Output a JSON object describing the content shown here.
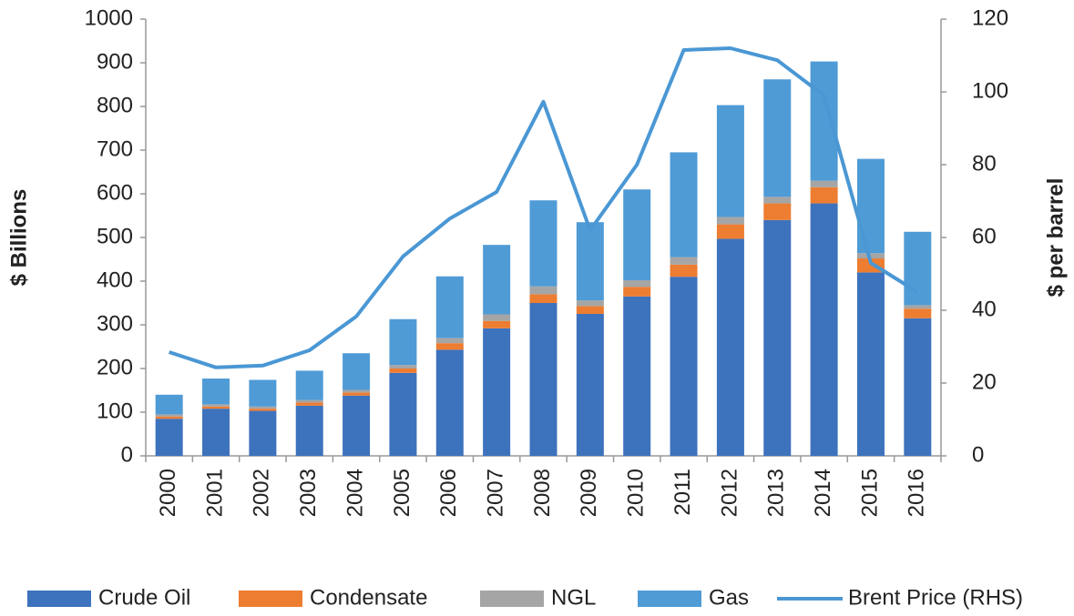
{
  "chart_data": {
    "type": "bar",
    "stacked": true,
    "categories": [
      "2000",
      "2001",
      "2002",
      "2003",
      "2004",
      "2005",
      "2006",
      "2007",
      "2008",
      "2009",
      "2010",
      "2011",
      "2012",
      "2013",
      "2014",
      "2015",
      "2016"
    ],
    "series": [
      {
        "name": "Crude Oil",
        "color": "#3d72bd",
        "values": [
          85,
          108,
          103,
          115,
          138,
          190,
          243,
          292,
          350,
          325,
          365,
          410,
          497,
          540,
          578,
          420,
          315
        ]
      },
      {
        "name": "Condensate",
        "color": "#ed7d31",
        "values": [
          5,
          5,
          5,
          7,
          7,
          10,
          15,
          17,
          20,
          18,
          22,
          28,
          33,
          38,
          37,
          32,
          22
        ]
      },
      {
        "name": "NGL",
        "color": "#a5a5a5",
        "values": [
          5,
          5,
          5,
          6,
          6,
          8,
          12,
          15,
          18,
          13,
          15,
          17,
          17,
          15,
          15,
          12,
          8
        ]
      },
      {
        "name": "Gas",
        "color": "#4f9bd6",
        "values": [
          45,
          59,
          61,
          67,
          84,
          105,
          141,
          159,
          197,
          179,
          208,
          240,
          256,
          269,
          273,
          216,
          168
        ]
      },
      {
        "name": "Brent Price (RHS)",
        "color": "#4a97d4",
        "type": "line",
        "axis": "y2",
        "values": [
          28.5,
          24.3,
          24.8,
          29,
          38.3,
          54.8,
          65.2,
          72.5,
          97.3,
          62,
          80,
          111.5,
          112,
          108.7,
          99,
          53,
          45
        ]
      }
    ],
    "ylabel": "$ Billions",
    "y2label": "$ per barrel",
    "ylim": [
      0,
      1000
    ],
    "yticks": [
      0,
      100,
      200,
      300,
      400,
      500,
      600,
      700,
      800,
      900,
      1000
    ],
    "y2lim": [
      0,
      120
    ],
    "y2ticks": [
      0,
      20,
      40,
      60,
      80,
      100,
      120
    ],
    "legend": "bottom"
  }
}
